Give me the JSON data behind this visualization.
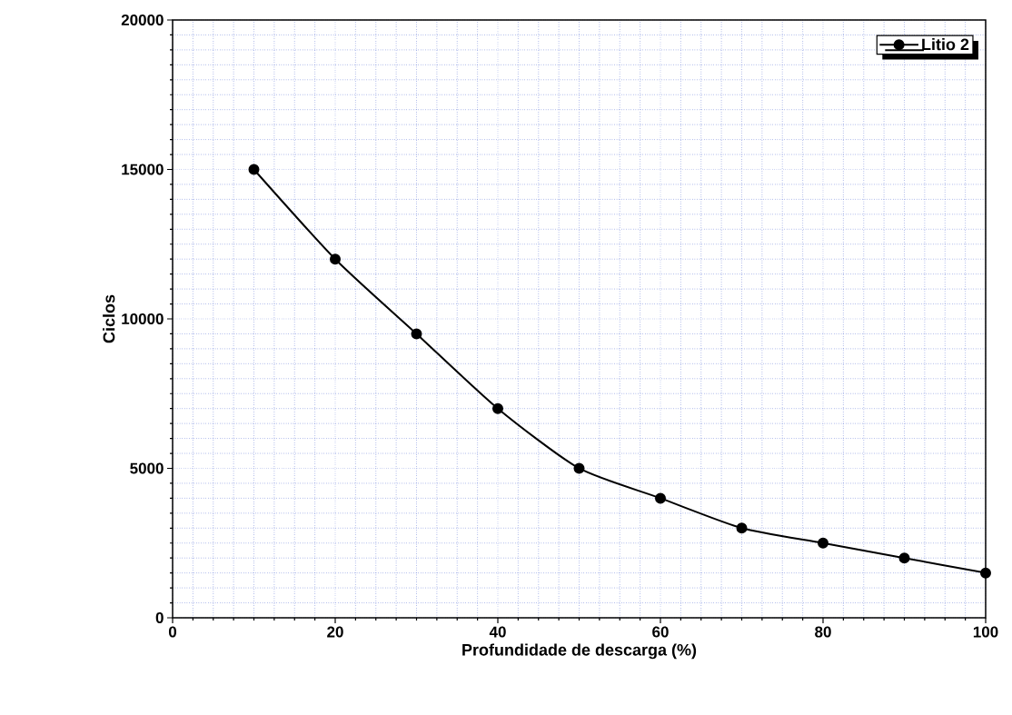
{
  "chart_data": {
    "type": "line",
    "xlabel": "Profundidade de descarga (%)",
    "ylabel": "Ciclos",
    "x": [
      10,
      20,
      30,
      40,
      50,
      60,
      70,
      80,
      90,
      100
    ],
    "series": [
      {
        "name": "Litio 2",
        "color": "#000000",
        "values": [
          15000,
          12000,
          9500,
          7000,
          5000,
          4000,
          3000,
          2500,
          2000,
          1500
        ]
      }
    ],
    "xlim": [
      0,
      100
    ],
    "xticks": [
      0,
      20,
      40,
      60,
      80,
      100
    ],
    "ylim": [
      0,
      20000
    ],
    "yticks": [
      0,
      5000,
      10000,
      15000,
      20000
    ],
    "grid": true,
    "legend": "top right",
    "marker": "circle",
    "line_style": "solid"
  }
}
